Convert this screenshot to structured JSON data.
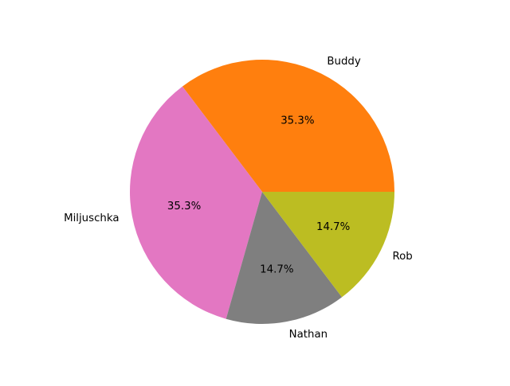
{
  "chart_data": {
    "type": "pie",
    "labels": [
      "Buddy",
      "Miljuschka",
      "Nathan",
      "Rob"
    ],
    "values": [
      35.3,
      35.3,
      14.7,
      14.7
    ],
    "pct_labels": [
      "35.3%",
      "35.3%",
      "14.7%",
      "14.7%"
    ],
    "colors": [
      "#ff7f0e",
      "#e377c2",
      "#7f7f7f",
      "#bcbd22"
    ],
    "start_angle_deg": 0,
    "direction": "counterclockwise",
    "legend": "none"
  }
}
